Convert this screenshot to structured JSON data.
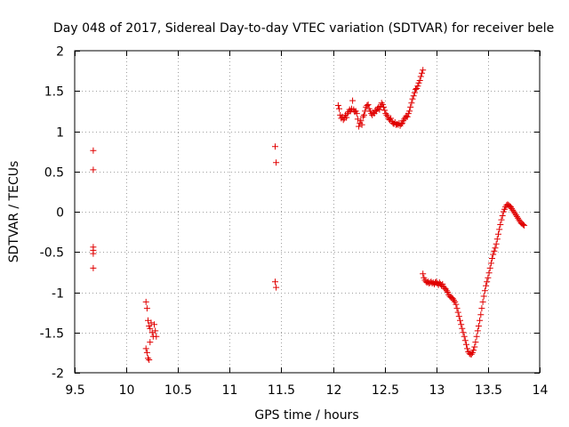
{
  "chart_data": {
    "type": "scatter",
    "title": "Day 048 of 2017, Sidereal Day-to-day VTEC variation (SDTVAR) for receiver bele",
    "xlabel": "GPS time / hours",
    "ylabel": "SDTVAR / TECUs",
    "xlim": [
      9.5,
      14
    ],
    "ylim": [
      -2,
      2
    ],
    "xticks": [
      9.5,
      10,
      10.5,
      11,
      11.5,
      12,
      12.5,
      13,
      13.5,
      14
    ],
    "xtick_labels": [
      "9.5",
      "10",
      "10.5",
      "11",
      "11.5",
      "12",
      "12.5",
      "13",
      "13.5",
      "14"
    ],
    "yticks": [
      -2,
      -1.5,
      -1,
      -0.5,
      0,
      0.5,
      1,
      1.5,
      2
    ],
    "ytick_labels": [
      "-2",
      "-1.5",
      "-1",
      "-0.5",
      "0",
      "0.5",
      "1",
      "1.5",
      "2"
    ],
    "grid": true,
    "marker": "+",
    "color": "#e00000",
    "series": [
      {
        "name": "SDTVAR",
        "points": [
          [
            9.68,
            0.76
          ],
          [
            9.68,
            0.52
          ],
          [
            9.68,
            -0.44
          ],
          [
            9.68,
            -0.48
          ],
          [
            9.68,
            -0.52
          ],
          [
            9.68,
            -0.7
          ],
          [
            10.19,
            -1.12
          ],
          [
            10.2,
            -1.2
          ],
          [
            10.21,
            -1.35
          ],
          [
            10.22,
            -1.42
          ],
          [
            10.23,
            -1.45
          ],
          [
            10.24,
            -1.38
          ],
          [
            10.25,
            -1.5
          ],
          [
            10.26,
            -1.55
          ],
          [
            10.27,
            -1.4
          ],
          [
            10.28,
            -1.48
          ],
          [
            10.29,
            -1.55
          ],
          [
            10.19,
            -1.7
          ],
          [
            10.2,
            -1.75
          ],
          [
            10.21,
            -1.82
          ],
          [
            10.22,
            -1.84
          ],
          [
            10.23,
            -1.62
          ],
          [
            11.44,
            0.81
          ],
          [
            11.45,
            0.61
          ],
          [
            11.44,
            -0.87
          ],
          [
            11.45,
            -0.94
          ],
          [
            12.05,
            1.32
          ],
          [
            12.06,
            1.28
          ],
          [
            12.07,
            1.2
          ],
          [
            12.08,
            1.16
          ],
          [
            12.09,
            1.18
          ],
          [
            12.1,
            1.14
          ],
          [
            12.11,
            1.16
          ],
          [
            12.12,
            1.2
          ],
          [
            12.13,
            1.17
          ],
          [
            12.14,
            1.22
          ],
          [
            12.15,
            1.24
          ],
          [
            12.16,
            1.27
          ],
          [
            12.17,
            1.25
          ],
          [
            12.18,
            1.28
          ],
          [
            12.19,
            1.38
          ],
          [
            12.2,
            1.27
          ],
          [
            12.21,
            1.24
          ],
          [
            12.22,
            1.25
          ],
          [
            12.23,
            1.22
          ],
          [
            12.24,
            1.15
          ],
          [
            12.25,
            1.06
          ],
          [
            12.26,
            1.1
          ],
          [
            12.27,
            1.13
          ],
          [
            12.28,
            1.08
          ],
          [
            12.29,
            1.18
          ],
          [
            12.3,
            1.2
          ],
          [
            12.31,
            1.25
          ],
          [
            12.32,
            1.3
          ],
          [
            12.33,
            1.32
          ],
          [
            12.34,
            1.33
          ],
          [
            12.35,
            1.28
          ],
          [
            12.36,
            1.25
          ],
          [
            12.37,
            1.22
          ],
          [
            12.38,
            1.2
          ],
          [
            12.39,
            1.23
          ],
          [
            12.4,
            1.22
          ],
          [
            12.41,
            1.26
          ],
          [
            12.42,
            1.25
          ],
          [
            12.43,
            1.28
          ],
          [
            12.44,
            1.3
          ],
          [
            12.45,
            1.27
          ],
          [
            12.46,
            1.31
          ],
          [
            12.47,
            1.35
          ],
          [
            12.48,
            1.33
          ],
          [
            12.49,
            1.3
          ],
          [
            12.5,
            1.26
          ],
          [
            12.51,
            1.22
          ],
          [
            12.52,
            1.2
          ],
          [
            12.53,
            1.18
          ],
          [
            12.54,
            1.15
          ],
          [
            12.55,
            1.14
          ],
          [
            12.56,
            1.16
          ],
          [
            12.57,
            1.12
          ],
          [
            12.58,
            1.1
          ],
          [
            12.59,
            1.09
          ],
          [
            12.6,
            1.11
          ],
          [
            12.61,
            1.08
          ],
          [
            12.62,
            1.09
          ],
          [
            12.63,
            1.08
          ],
          [
            12.64,
            1.1
          ],
          [
            12.65,
            1.07
          ],
          [
            12.66,
            1.09
          ],
          [
            12.67,
            1.1
          ],
          [
            12.68,
            1.13
          ],
          [
            12.69,
            1.15
          ],
          [
            12.7,
            1.17
          ],
          [
            12.71,
            1.19
          ],
          [
            12.72,
            1.18
          ],
          [
            12.73,
            1.22
          ],
          [
            12.74,
            1.25
          ],
          [
            12.75,
            1.3
          ],
          [
            12.76,
            1.35
          ],
          [
            12.77,
            1.4
          ],
          [
            12.78,
            1.44
          ],
          [
            12.79,
            1.48
          ],
          [
            12.8,
            1.52
          ],
          [
            12.81,
            1.53
          ],
          [
            12.82,
            1.56
          ],
          [
            12.83,
            1.6
          ],
          [
            12.84,
            1.63
          ],
          [
            12.85,
            1.68
          ],
          [
            12.86,
            1.72
          ],
          [
            12.87,
            1.76
          ],
          [
            12.87,
            -0.77
          ],
          [
            12.88,
            -0.82
          ],
          [
            12.89,
            -0.85
          ],
          [
            12.9,
            -0.87
          ],
          [
            12.91,
            -0.88
          ],
          [
            12.92,
            -0.87
          ],
          [
            12.93,
            -0.89
          ],
          [
            12.94,
            -0.88
          ],
          [
            12.95,
            -0.87
          ],
          [
            12.96,
            -0.89
          ],
          [
            12.97,
            -0.88
          ],
          [
            12.98,
            -0.9
          ],
          [
            12.99,
            -0.88
          ],
          [
            13.0,
            -0.87
          ],
          [
            13.01,
            -0.89
          ],
          [
            13.02,
            -0.91
          ],
          [
            13.03,
            -0.88
          ],
          [
            13.04,
            -0.9
          ],
          [
            13.05,
            -0.92
          ],
          [
            13.06,
            -0.9
          ],
          [
            13.07,
            -0.93
          ],
          [
            13.08,
            -0.95
          ],
          [
            13.09,
            -0.96
          ],
          [
            13.1,
            -0.98
          ],
          [
            13.11,
            -1.0
          ],
          [
            13.12,
            -1.03
          ],
          [
            13.13,
            -1.05
          ],
          [
            13.14,
            -1.06
          ],
          [
            13.15,
            -1.07
          ],
          [
            13.16,
            -1.08
          ],
          [
            13.17,
            -1.1
          ],
          [
            13.18,
            -1.12
          ],
          [
            13.19,
            -1.15
          ],
          [
            13.2,
            -1.2
          ],
          [
            13.21,
            -1.25
          ],
          [
            13.22,
            -1.3
          ],
          [
            13.23,
            -1.35
          ],
          [
            13.24,
            -1.4
          ],
          [
            13.25,
            -1.45
          ],
          [
            13.26,
            -1.5
          ],
          [
            13.27,
            -1.55
          ],
          [
            13.28,
            -1.6
          ],
          [
            13.29,
            -1.65
          ],
          [
            13.3,
            -1.7
          ],
          [
            13.31,
            -1.74
          ],
          [
            13.32,
            -1.76
          ],
          [
            13.33,
            -1.77
          ],
          [
            13.34,
            -1.77
          ],
          [
            13.35,
            -1.75
          ],
          [
            13.36,
            -1.72
          ],
          [
            13.37,
            -1.68
          ],
          [
            13.38,
            -1.62
          ],
          [
            13.39,
            -1.55
          ],
          [
            13.4,
            -1.48
          ],
          [
            13.41,
            -1.42
          ],
          [
            13.42,
            -1.35
          ],
          [
            13.43,
            -1.28
          ],
          [
            13.44,
            -1.2
          ],
          [
            13.45,
            -1.12
          ],
          [
            13.46,
            -1.05
          ],
          [
            13.47,
            -0.98
          ],
          [
            13.48,
            -0.92
          ],
          [
            13.49,
            -0.87
          ],
          [
            13.5,
            -0.82
          ],
          [
            13.51,
            -0.76
          ],
          [
            13.52,
            -0.7
          ],
          [
            13.53,
            -0.64
          ],
          [
            13.54,
            -0.58
          ],
          [
            13.55,
            -0.53
          ],
          [
            13.56,
            -0.49
          ],
          [
            13.57,
            -0.45
          ],
          [
            13.58,
            -0.4
          ],
          [
            13.59,
            -0.34
          ],
          [
            13.6,
            -0.28
          ],
          [
            13.61,
            -0.22
          ],
          [
            13.62,
            -0.16
          ],
          [
            13.63,
            -0.1
          ],
          [
            13.64,
            -0.05
          ],
          [
            13.65,
            0.0
          ],
          [
            13.66,
            0.03
          ],
          [
            13.67,
            0.06
          ],
          [
            13.68,
            0.08
          ],
          [
            13.69,
            0.09
          ],
          [
            13.7,
            0.08
          ],
          [
            13.71,
            0.07
          ],
          [
            13.72,
            0.06
          ],
          [
            13.73,
            0.04
          ],
          [
            13.74,
            0.02
          ],
          [
            13.75,
            0.0
          ],
          [
            13.76,
            -0.02
          ],
          [
            13.77,
            -0.04
          ],
          [
            13.78,
            -0.06
          ],
          [
            13.79,
            -0.08
          ],
          [
            13.8,
            -0.1
          ],
          [
            13.81,
            -0.12
          ],
          [
            13.82,
            -0.14
          ],
          [
            13.83,
            -0.15
          ],
          [
            13.84,
            -0.16
          ],
          [
            13.85,
            -0.17
          ]
        ]
      }
    ]
  }
}
